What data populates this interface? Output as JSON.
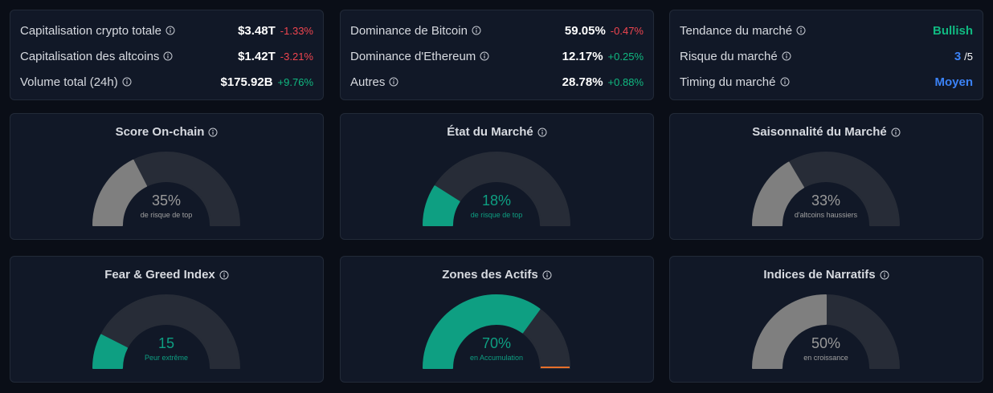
{
  "stats_cards": [
    {
      "rows": [
        {
          "label": "Capitalisation crypto totale",
          "value": "$3.48T",
          "change": "-1.33%",
          "change_color": "#f0454f"
        },
        {
          "label": "Capitalisation des altcoins",
          "value": "$1.42T",
          "change": "-3.21%",
          "change_color": "#f0454f"
        },
        {
          "label": "Volume total (24h)",
          "value": "$175.92B",
          "change": "+9.76%",
          "change_color": "#10b981"
        }
      ]
    },
    {
      "rows": [
        {
          "label": "Dominance de Bitcoin",
          "value": "59.05%",
          "change": "-0.47%",
          "change_color": "#f0454f"
        },
        {
          "label": "Dominance d'Ethereum",
          "value": "12.17%",
          "change": "+0.25%",
          "change_color": "#10b981"
        },
        {
          "label": "Autres",
          "value": "28.78%",
          "change": "+0.88%",
          "change_color": "#10b981"
        }
      ]
    },
    {
      "rows": [
        {
          "label": "Tendance du marché",
          "value": "Bullish",
          "value_color": "#10b981"
        },
        {
          "label": "Risque du marché",
          "value": "3",
          "value_color": "#3b82f6",
          "suffix": "/5"
        },
        {
          "label": "Timing du marché",
          "value": "Moyen",
          "value_color": "#3b82f6"
        }
      ]
    }
  ],
  "gauge_range": [
    0,
    100
  ],
  "gauges": [
    {
      "title": "Score On-chain",
      "value": 35,
      "value_label": "35%",
      "caption": "de risque de top",
      "color": "#7f7f7f"
    },
    {
      "title": "État du Marché",
      "value": 18,
      "value_label": "18%",
      "caption": "de risque de top",
      "color": "#0e9f82"
    },
    {
      "title": "Saisonnalité du Marché",
      "value": 33,
      "value_label": "33%",
      "caption": "d'altcoins haussiers",
      "color": "#7f7f7f"
    },
    {
      "title": "Fear & Greed Index",
      "value": 15,
      "caption": "Peur extrême",
      "color": "#0e9f82"
    },
    {
      "title": "Zones des Actifs",
      "value": 70,
      "value_label": "70%",
      "caption": "en Accumulation",
      "color": "#0e9f82"
    },
    {
      "title": "Indices de Narratifs",
      "value": 50,
      "value_label": "50%",
      "caption": "en croissance",
      "color": "#7f7f7f"
    }
  ]
}
